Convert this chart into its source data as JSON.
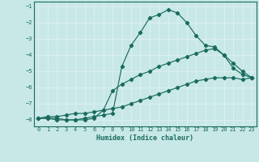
{
  "xlabel": "Humidex (Indice chaleur)",
  "background_color": "#c8e8e8",
  "grid_color": "#e0f0f0",
  "line_color": "#1a6b5e",
  "xlim": [
    -0.5,
    23.5
  ],
  "ylim": [
    -8.4,
    -0.7
  ],
  "yticks": [
    -8,
    -7,
    -6,
    -5,
    -4,
    -3,
    -2,
    -1
  ],
  "xticks": [
    0,
    1,
    2,
    3,
    4,
    5,
    6,
    7,
    8,
    9,
    10,
    11,
    12,
    13,
    14,
    15,
    16,
    17,
    18,
    19,
    20,
    21,
    22,
    23
  ],
  "line1_x": [
    0,
    1,
    2,
    3,
    4,
    5,
    6,
    7,
    8,
    9,
    10,
    11,
    12,
    13,
    14,
    15,
    16,
    17,
    18,
    19,
    20,
    21,
    22,
    23
  ],
  "line1_y": [
    -7.9,
    -7.9,
    -7.9,
    -8.0,
    -8.0,
    -7.9,
    -7.8,
    -7.7,
    -7.6,
    -4.7,
    -3.4,
    -2.6,
    -1.7,
    -1.5,
    -1.2,
    -1.4,
    -2.0,
    -2.8,
    -3.4,
    -3.5,
    -4.0,
    -4.8,
    -5.2,
    -5.4
  ],
  "line2_x": [
    0,
    1,
    2,
    3,
    4,
    5,
    6,
    7,
    8,
    9,
    10,
    11,
    12,
    13,
    14,
    15,
    16,
    17,
    18,
    19,
    20,
    21,
    22,
    23
  ],
  "line2_y": [
    -7.9,
    -7.9,
    -8.0,
    -8.0,
    -8.0,
    -8.0,
    -7.9,
    -7.4,
    -6.2,
    -5.8,
    -5.5,
    -5.2,
    -5.0,
    -4.7,
    -4.5,
    -4.3,
    -4.1,
    -3.9,
    -3.7,
    -3.6,
    -4.0,
    -4.5,
    -5.0,
    -5.4
  ],
  "line3_x": [
    0,
    1,
    2,
    3,
    4,
    5,
    6,
    7,
    8,
    9,
    10,
    11,
    12,
    13,
    14,
    15,
    16,
    17,
    18,
    19,
    20,
    21,
    22,
    23
  ],
  "line3_y": [
    -7.9,
    -7.8,
    -7.8,
    -7.7,
    -7.6,
    -7.6,
    -7.5,
    -7.4,
    -7.3,
    -7.2,
    -7.0,
    -6.8,
    -6.6,
    -6.4,
    -6.2,
    -6.0,
    -5.8,
    -5.6,
    -5.5,
    -5.4,
    -5.4,
    -5.4,
    -5.5,
    -5.4
  ]
}
